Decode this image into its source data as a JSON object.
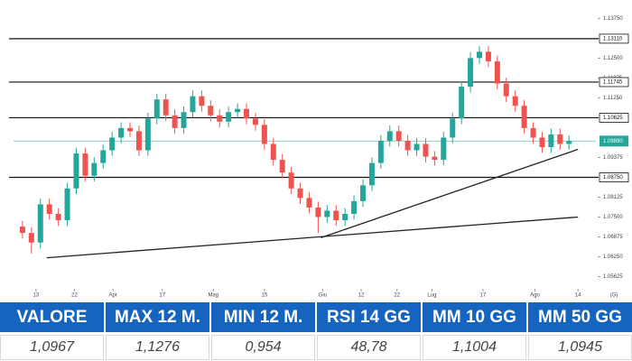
{
  "chart_data": {
    "type": "candlestick",
    "up_color": "#26a69a",
    "down_color": "#ef5350",
    "xlim": [
      -1,
      64
    ],
    "xticks": [
      {
        "value": 1.5,
        "label": "13"
      },
      {
        "value": 5.8,
        "label": "22"
      },
      {
        "value": 10.1,
        "label": "Apr"
      },
      {
        "value": 15.6,
        "label": "17"
      },
      {
        "value": 21.3,
        "label": "Mag"
      },
      {
        "value": 27,
        "label": "15"
      },
      {
        "value": 33.5,
        "label": "Giu"
      },
      {
        "value": 37.8,
        "label": "12"
      },
      {
        "value": 41.8,
        "label": "22"
      },
      {
        "value": 45.7,
        "label": "Lug"
      },
      {
        "value": 51.4,
        "label": "17"
      },
      {
        "value": 57.2,
        "label": "Ago"
      },
      {
        "value": 62,
        "label": "14"
      }
    ],
    "timeframe": "(G)",
    "ylim": [
      1.053,
      1.141
    ],
    "yticks": [
      {
        "value": 1.1375,
        "label": "1.13750"
      },
      {
        "value": 1.125,
        "label": "1.12500"
      },
      {
        "value": 1.11875,
        "label": "1.11875"
      },
      {
        "value": 1.1125,
        "label": "1.11250"
      },
      {
        "value": 1.09375,
        "label": "1.09375"
      },
      {
        "value": 1.08125,
        "label": "1.08125"
      },
      {
        "value": 1.075,
        "label": "1.07500"
      },
      {
        "value": 1.06875,
        "label": "1.06875"
      },
      {
        "value": 1.0625,
        "label": "1.06250"
      },
      {
        "value": 1.05625,
        "label": "1.05625"
      }
    ],
    "levels": [
      {
        "value": 1.1311,
        "label": "1.13110"
      },
      {
        "value": 1.11745,
        "label": "1.11745"
      },
      {
        "value": 1.10625,
        "label": "1.10625"
      },
      {
        "value": 1.0875,
        "label": "1.08750"
      }
    ],
    "last_price": {
      "value": 1.0989,
      "label": "1.09890",
      "color": "#26a69a"
    },
    "trendlines": [
      {
        "x": [
          2.7,
          62
        ],
        "y": [
          1.0622,
          1.075
        ]
      },
      {
        "x": [
          33.3,
          62
        ],
        "y": [
          1.0685,
          1.0963
        ]
      }
    ],
    "open": [
      1.072,
      1.07,
      1.067,
      1.079,
      1.076,
      1.074,
      1.084,
      1.095,
      1.088,
      1.092,
      1.096,
      1.1,
      1.103,
      1.102,
      1.096,
      1.106,
      1.112,
      1.107,
      1.103,
      1.108,
      1.113,
      1.11,
      1.107,
      1.105,
      1.108,
      1.109,
      1.106,
      1.104,
      1.098,
      1.093,
      1.089,
      1.084,
      1.081,
      1.078,
      1.075,
      1.077,
      1.074,
      1.076,
      1.08,
      1.085,
      1.092,
      1.099,
      1.102,
      1.099,
      1.096,
      1.098,
      1.094,
      1.093,
      1.1,
      1.106,
      1.116,
      1.125,
      1.127,
      1.124,
      1.117,
      1.113,
      1.11,
      1.103,
      1.1,
      1.097,
      1.101,
      1.098
    ],
    "high": [
      1.0738,
      1.0718,
      1.0808,
      1.0808,
      1.0778,
      1.0858,
      1.0968,
      1.0968,
      1.0938,
      1.0978,
      1.1018,
      1.1048,
      1.1048,
      1.1038,
      1.1078,
      1.1138,
      1.1138,
      1.1088,
      1.1098,
      1.1148,
      1.1148,
      1.1118,
      1.1088,
      1.1098,
      1.1108,
      1.1108,
      1.1078,
      1.1058,
      1.0998,
      1.0948,
      1.0908,
      1.0858,
      1.0828,
      1.0798,
      1.0788,
      1.0788,
      1.0778,
      1.0818,
      1.0868,
      1.0938,
      1.1008,
      1.1038,
      1.1038,
      1.1008,
      1.0998,
      1.0998,
      1.0958,
      1.1018,
      1.1078,
      1.1178,
      1.1268,
      1.1288,
      1.1288,
      1.1258,
      1.1188,
      1.1148,
      1.1118,
      1.1048,
      1.1018,
      1.1028,
      1.1028,
      1.1007
    ],
    "low": [
      1.0682,
      1.0635,
      1.0652,
      1.0742,
      1.0722,
      1.0722,
      1.0822,
      1.0862,
      1.0862,
      1.0902,
      1.0942,
      1.0982,
      1.1002,
      1.0942,
      1.0942,
      1.1042,
      1.1052,
      1.1012,
      1.1012,
      1.1062,
      1.1082,
      1.1052,
      1.1032,
      1.1032,
      1.1062,
      1.1042,
      1.1022,
      1.0962,
      1.0912,
      1.0872,
      1.0822,
      1.0792,
      1.0762,
      1.07,
      1.0732,
      1.0722,
      1.0722,
      1.0742,
      1.0782,
      1.0832,
      1.0902,
      1.0972,
      1.0972,
      1.0942,
      1.0942,
      1.0922,
      1.0912,
      1.0912,
      1.0982,
      1.1042,
      1.1142,
      1.1232,
      1.1222,
      1.1152,
      1.1112,
      1.1082,
      1.1012,
      1.0982,
      1.0952,
      1.0952,
      1.0962,
      1.0962
    ],
    "close": [
      1.07,
      1.067,
      1.079,
      1.076,
      1.074,
      1.084,
      1.095,
      1.088,
      1.092,
      1.096,
      1.1,
      1.103,
      1.102,
      1.096,
      1.106,
      1.112,
      1.107,
      1.103,
      1.108,
      1.113,
      1.11,
      1.107,
      1.105,
      1.108,
      1.109,
      1.106,
      1.104,
      1.098,
      1.093,
      1.089,
      1.084,
      1.081,
      1.078,
      1.075,
      1.077,
      1.074,
      1.076,
      1.08,
      1.085,
      1.092,
      1.099,
      1.102,
      1.099,
      1.096,
      1.098,
      1.094,
      1.093,
      1.1,
      1.106,
      1.116,
      1.125,
      1.127,
      1.124,
      1.117,
      1.113,
      1.11,
      1.103,
      1.1,
      1.097,
      1.101,
      1.098,
      1.0989
    ]
  },
  "table": {
    "header": [
      "VALORE",
      "MAX 12 M.",
      "MIN 12 M.",
      "RSI 14 GG",
      "MM 10 GG",
      "MM 50 GG"
    ],
    "values": [
      "1,0967",
      "1,1276",
      "0,954",
      "48,78",
      "1,1004",
      "1,0945"
    ]
  }
}
